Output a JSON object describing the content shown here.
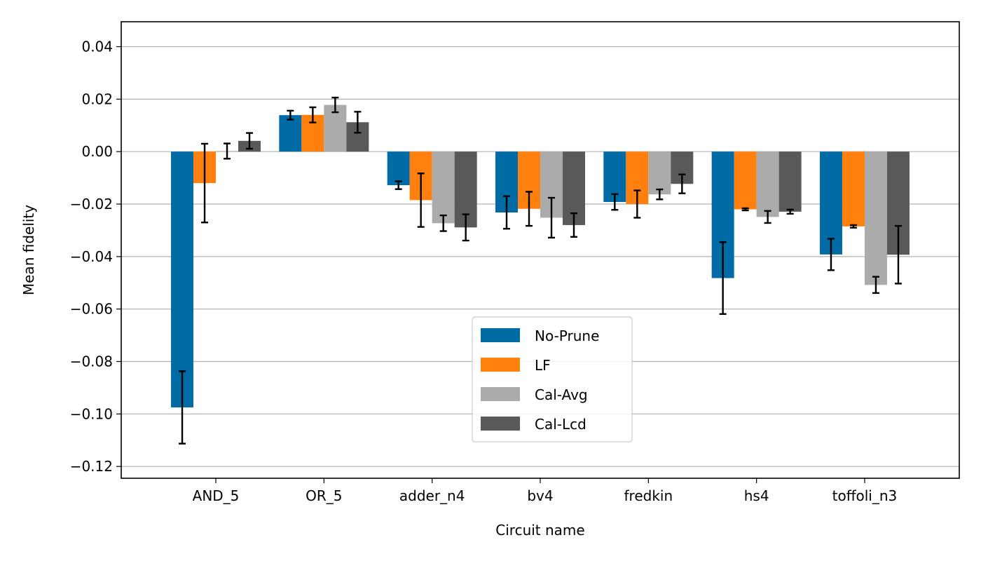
{
  "chart_data": {
    "type": "bar",
    "xlabel": "Circuit name",
    "ylabel": "Mean fidelity",
    "ylim": [
      -0.1245,
      0.0495
    ],
    "yticks": [
      0.04,
      0.02,
      0.0,
      -0.02,
      -0.04,
      -0.06,
      -0.08,
      -0.1,
      -0.12
    ],
    "ytick_labels": [
      "0.04",
      "0.02",
      "0.00",
      "−0.02",
      "−0.04",
      "−0.06",
      "−0.08",
      "−0.10",
      "−0.12"
    ],
    "grid": "horizontal",
    "legend_position": "bottom-center",
    "categories": [
      "AND_5",
      "OR_5",
      "adder_n4",
      "bv4",
      "fredkin",
      "hs4",
      "toffoli_n3"
    ],
    "series": [
      {
        "name": "No-Prune",
        "color": "#006ba4",
        "values": [
          -0.0975,
          0.0139,
          -0.0128,
          -0.0232,
          -0.0192,
          -0.0482,
          -0.0392
        ],
        "errors": [
          0.0138,
          0.0017,
          0.0015,
          0.0062,
          0.003,
          0.0137,
          0.006
        ]
      },
      {
        "name": "LF",
        "color": "#ff800e",
        "values": [
          -0.012,
          0.014,
          -0.0185,
          -0.0218,
          -0.02,
          -0.022,
          -0.0285
        ],
        "errors": [
          0.015,
          0.0029,
          0.0102,
          0.0065,
          0.0052,
          0.0004,
          0.0005
        ]
      },
      {
        "name": "Cal-Avg",
        "color": "#ababab",
        "values": [
          0.0002,
          0.0178,
          -0.0273,
          -0.0252,
          -0.0163,
          -0.0249,
          -0.0508
        ],
        "errors": [
          0.0029,
          0.0028,
          0.003,
          0.0076,
          0.0019,
          0.0023,
          0.0031
        ]
      },
      {
        "name": "Cal-Lcd",
        "color": "#595959",
        "values": [
          0.0041,
          0.0112,
          -0.0289,
          -0.028,
          -0.0123,
          -0.0229,
          -0.0393
        ],
        "errors": [
          0.003,
          0.004,
          0.005,
          0.0045,
          0.0036,
          0.0008,
          0.011
        ]
      }
    ]
  }
}
